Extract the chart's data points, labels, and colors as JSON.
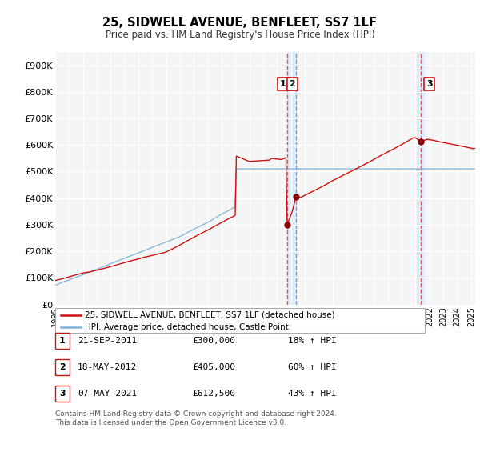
{
  "title": "25, SIDWELL AVENUE, BENFLEET, SS7 1LF",
  "subtitle": "Price paid vs. HM Land Registry's House Price Index (HPI)",
  "ylabel_ticks": [
    "£0",
    "£100K",
    "£200K",
    "£300K",
    "£400K",
    "£500K",
    "£600K",
    "£700K",
    "£800K",
    "£900K"
  ],
  "ytick_values": [
    0,
    100000,
    200000,
    300000,
    400000,
    500000,
    600000,
    700000,
    800000,
    900000
  ],
  "ylim": [
    0,
    950000
  ],
  "xlim_start": 1995.0,
  "xlim_end": 2025.3,
  "hpi_color": "#7fb4d8",
  "price_color": "#cc1111",
  "vline1_color": "#dd4444",
  "vline2_color": "#aabbcc",
  "shade_color": "#ddeeff",
  "transactions": [
    {
      "date": 2011.72,
      "price": 300000,
      "label": "1"
    },
    {
      "date": 2012.37,
      "price": 405000,
      "label": "2"
    },
    {
      "date": 2021.35,
      "price": 612500,
      "label": "3"
    }
  ],
  "legend_price_label": "25, SIDWELL AVENUE, BENFLEET, SS7 1LF (detached house)",
  "legend_hpi_label": "HPI: Average price, detached house, Castle Point",
  "table_data": [
    {
      "num": "1",
      "date": "21-SEP-2011",
      "price": "£300,000",
      "change": "18% ↑ HPI"
    },
    {
      "num": "2",
      "date": "18-MAY-2012",
      "price": "£405,000",
      "change": "60% ↑ HPI"
    },
    {
      "num": "3",
      "date": "07-MAY-2021",
      "price": "£612,500",
      "change": "43% ↑ HPI"
    }
  ],
  "footnote": "Contains HM Land Registry data © Crown copyright and database right 2024.\nThis data is licensed under the Open Government Licence v3.0.",
  "background_color": "#f5f5f5"
}
